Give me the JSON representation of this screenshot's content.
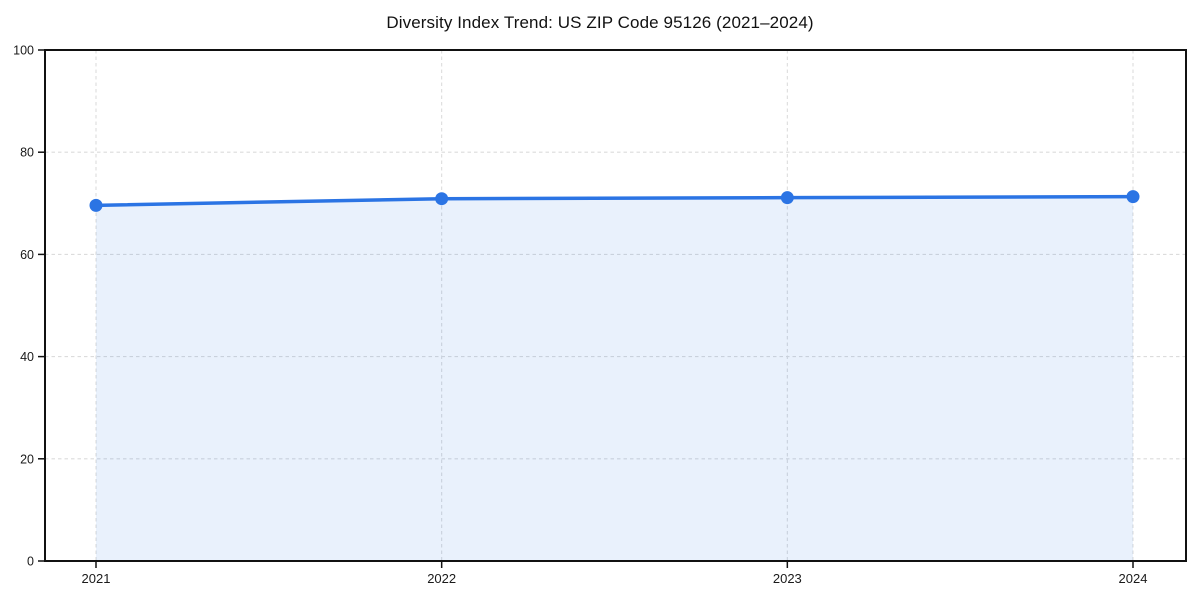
{
  "chart_data": {
    "type": "area",
    "title": "Diversity Index Trend: US ZIP Code 95126 (2021–2024)",
    "categories": [
      "2021",
      "2022",
      "2023",
      "2024"
    ],
    "series": [
      {
        "name": "Diversity Index",
        "values": [
          69.6,
          70.9,
          71.1,
          71.3
        ]
      }
    ],
    "xlabel": "",
    "ylabel": "",
    "ylim": [
      0,
      100
    ],
    "yticks": [
      0,
      20,
      40,
      60,
      80,
      100
    ],
    "grid": "dashed-both-axes",
    "legend": "none",
    "marker": "circle",
    "colors": {
      "line": "#2b74e4",
      "marker": "#2b74e4",
      "fill": "#2b74e4",
      "fill_opacity": 0.1,
      "grid": "#dcdcdc",
      "frame": "#111111",
      "tick_label": "#1a1a1a",
      "title": "#111111",
      "background": "#ffffff"
    }
  }
}
